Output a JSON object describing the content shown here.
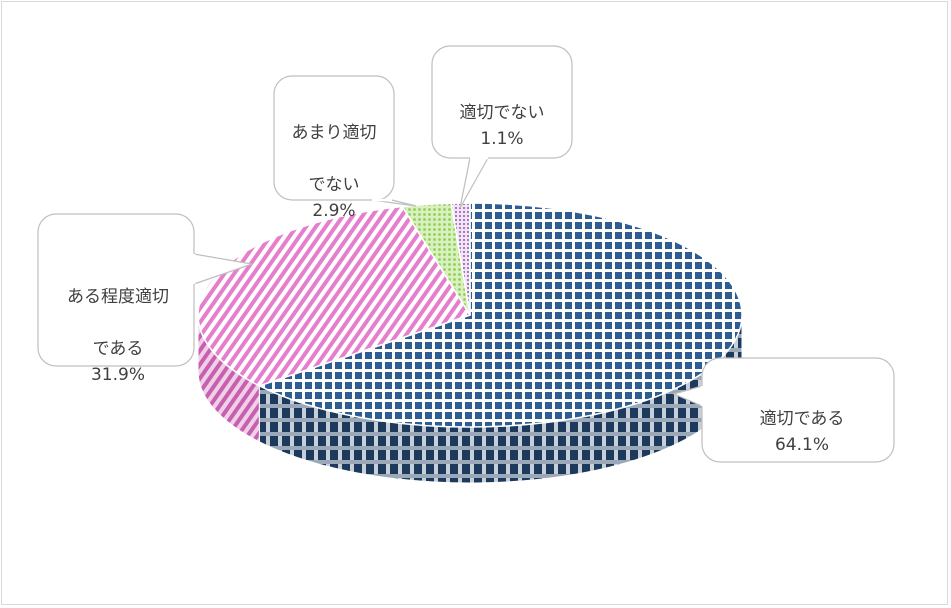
{
  "chart_data": {
    "type": "pie",
    "style": "3d-pie",
    "title": "",
    "categories": [
      "適切である",
      "ある程度適切である",
      "あまり適切でない",
      "適切でない"
    ],
    "values": [
      64.1,
      31.9,
      2.9,
      1.1
    ],
    "unit": "%",
    "data_labels": [
      {
        "line1": "適切である",
        "line2": "",
        "value": "64.1%"
      },
      {
        "line1": "ある程度適切",
        "line2": "である",
        "value": "31.9%"
      },
      {
        "line1": "あまり適切",
        "line2": "でない",
        "value": "2.9%"
      },
      {
        "line1": "適切でない",
        "line2": "",
        "value": "1.1%"
      }
    ],
    "colors": [
      "#1f4e79",
      "#e879c8",
      "#b6e08a",
      "#c9a3d9"
    ],
    "patterns": [
      "checker-blue",
      "diagonal-pink",
      "dots-green",
      "dots-purple"
    ],
    "legend": "none"
  }
}
